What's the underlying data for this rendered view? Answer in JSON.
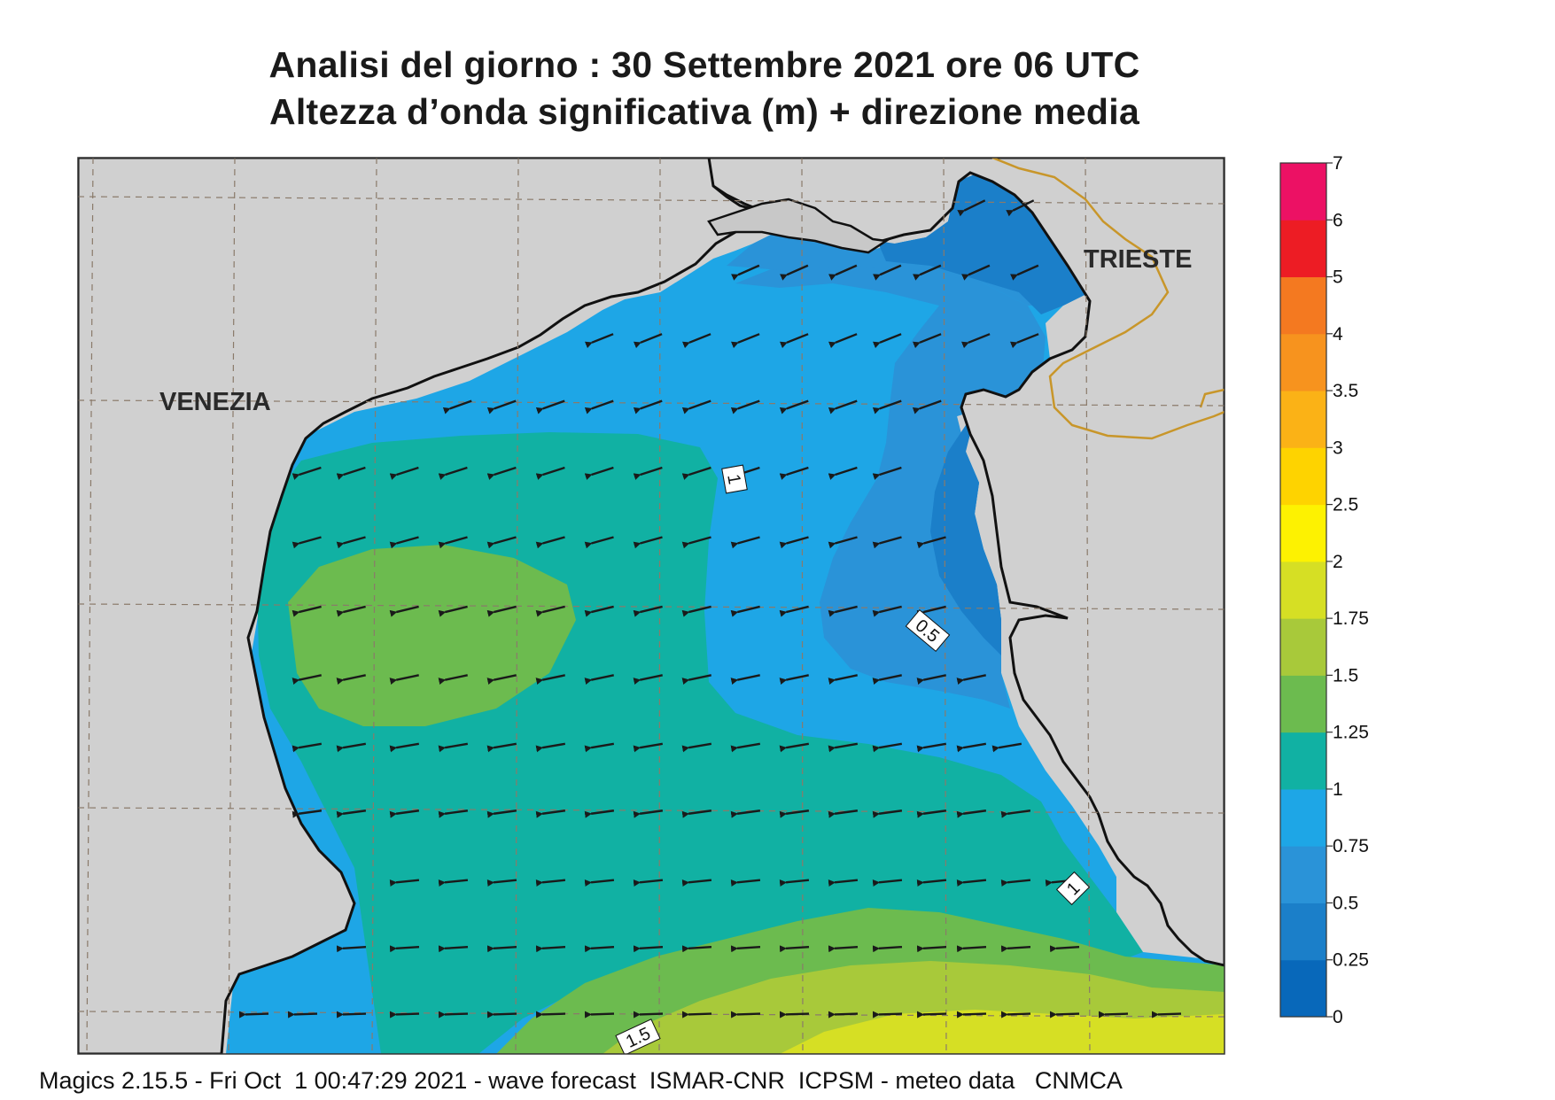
{
  "header": {
    "title_line1": "Analisi del giorno :  30 Settembre 2021   ore 06 UTC",
    "title_line2": "Altezza d’onda significativa (m) + direzione media"
  },
  "map": {
    "places": [
      {
        "name": "VENEZIA"
      },
      {
        "name": "TRIESTE"
      }
    ],
    "contour_labels": [
      "1",
      "0.5",
      "1",
      "1.5"
    ],
    "colors": {
      "land": "#d0d0d0",
      "coastline": "#111111",
      "border": "#c8962a",
      "grid": "#8a7a6a",
      "arrow": "#1a1a1a"
    }
  },
  "colorbar": {
    "labels": [
      "0",
      "0.25",
      "0.5",
      "0.75",
      "1",
      "1.25",
      "1.5",
      "1.75",
      "2",
      "2.5",
      "3",
      "3.5",
      "4",
      "5",
      "6",
      "7"
    ],
    "colors": [
      "#0868ba",
      "#1b7fc9",
      "#2a93d8",
      "#1ea6e6",
      "#11b1a3",
      "#6cbb4f",
      "#a8c93a",
      "#d6df24",
      "#fdf201",
      "#fed300",
      "#fbb216",
      "#f7931e",
      "#f47920",
      "#ed1c24",
      "#ec1164"
    ]
  },
  "footer": {
    "text": "Magics 2.15.5 - Fri Oct  1 00:47:29 2021 - wave forecast  ISMAR-CNR  ICPSM - meteo data   CNMCA"
  }
}
